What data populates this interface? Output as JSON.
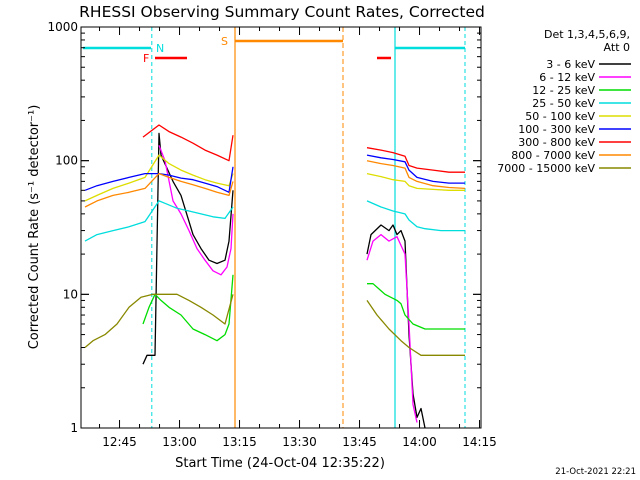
{
  "chart_data": {
    "type": "line",
    "title": "RHESSI Observing Summary Count Rates, Corrected",
    "xlabel": "Start Time (24-Oct-04 12:35:22)",
    "ylabel": "Corrected Count Rate (s⁻¹ detector⁻¹)",
    "y_scale": "log",
    "ylim": [
      1,
      1000
    ],
    "xlim_minutes": [
      0,
      100
    ],
    "x_tick_labels": [
      "12:45",
      "13:00",
      "13:15",
      "13:30",
      "13:45",
      "14:00",
      "14:15"
    ],
    "y_tick_labels": [
      "1",
      "10",
      "100",
      "1000"
    ],
    "legend_header": [
      "Det 1,3,4,5,6,9,",
      "Att 0"
    ],
    "timestamp": "21-Oct-2021 22:21",
    "markers": {
      "F": "F",
      "N": "N",
      "S": "S"
    },
    "series": [
      {
        "name": "3 - 6 keV",
        "color": "#000000",
        "points": [
          [
            15.5,
            3.0
          ],
          [
            16.5,
            3.5
          ],
          [
            18.5,
            3.5
          ],
          [
            19.5,
            160
          ],
          [
            20,
            110
          ],
          [
            23,
            70
          ],
          [
            25,
            55
          ],
          [
            28,
            28
          ],
          [
            30,
            22
          ],
          [
            32,
            18
          ],
          [
            34,
            17
          ],
          [
            36,
            18
          ],
          [
            37,
            25
          ],
          [
            38,
            60
          ],
          [
            null,
            null
          ],
          [
            71.5,
            20
          ],
          [
            72.5,
            28
          ],
          [
            75,
            33
          ],
          [
            77,
            30
          ],
          [
            78,
            33
          ],
          [
            79,
            28
          ],
          [
            80,
            30
          ],
          [
            81,
            25
          ],
          [
            82,
            5
          ],
          [
            83,
            1.8
          ],
          [
            84,
            1.2
          ],
          [
            85,
            1.4
          ],
          [
            86,
            1.0
          ]
        ]
      },
      {
        "name": "6 - 12 keV",
        "color": "#ff00ff",
        "points": [
          [
            19.5,
            130
          ],
          [
            21,
            100
          ],
          [
            23,
            50
          ],
          [
            25,
            40
          ],
          [
            27,
            30
          ],
          [
            29,
            22
          ],
          [
            31,
            18
          ],
          [
            33,
            15
          ],
          [
            35,
            14
          ],
          [
            36.5,
            16
          ],
          [
            37.5,
            22
          ],
          [
            38,
            40
          ],
          [
            null,
            null
          ],
          [
            71.5,
            18
          ],
          [
            73,
            25
          ],
          [
            75,
            28
          ],
          [
            77,
            25
          ],
          [
            79,
            27
          ],
          [
            81,
            20
          ],
          [
            82,
            6
          ],
          [
            83,
            1.5
          ],
          [
            84,
            1.1
          ]
        ]
      },
      {
        "name": "12 - 25 keV",
        "color": "#00dd00",
        "points": [
          [
            15.5,
            6
          ],
          [
            17,
            8
          ],
          [
            18.5,
            10
          ],
          [
            20,
            9
          ],
          [
            22,
            8
          ],
          [
            25,
            7
          ],
          [
            28,
            5.5
          ],
          [
            31,
            5
          ],
          [
            34,
            4.5
          ],
          [
            36,
            5
          ],
          [
            37,
            6
          ],
          [
            38,
            14
          ],
          [
            null,
            null
          ],
          [
            71.5,
            12
          ],
          [
            73,
            12
          ],
          [
            76,
            10
          ],
          [
            79,
            9
          ],
          [
            80,
            8.5
          ],
          [
            81,
            7
          ],
          [
            83,
            6
          ],
          [
            86,
            5.5
          ],
          [
            90,
            5.5
          ],
          [
            96,
            5.5
          ]
        ]
      },
      {
        "name": "25 - 50 keV",
        "color": "#00dddd",
        "points": [
          [
            1,
            25
          ],
          [
            4,
            28
          ],
          [
            8,
            30
          ],
          [
            12,
            32
          ],
          [
            16,
            35
          ],
          [
            19.5,
            50
          ],
          [
            21,
            48
          ],
          [
            24,
            44
          ],
          [
            27,
            42
          ],
          [
            30,
            40
          ],
          [
            33,
            38
          ],
          [
            36,
            37
          ],
          [
            38,
            45
          ],
          [
            null,
            null
          ],
          [
            71.5,
            50
          ],
          [
            75,
            45
          ],
          [
            78,
            42
          ],
          [
            81,
            40
          ],
          [
            82,
            36
          ],
          [
            84,
            32
          ],
          [
            86,
            31
          ],
          [
            90,
            30
          ],
          [
            96,
            30
          ]
        ]
      },
      {
        "name": "50 - 100 keV",
        "color": "#dddd00",
        "points": [
          [
            1,
            50
          ],
          [
            4,
            55
          ],
          [
            8,
            62
          ],
          [
            12,
            68
          ],
          [
            16,
            75
          ],
          [
            19.5,
            110
          ],
          [
            22,
            95
          ],
          [
            25,
            85
          ],
          [
            28,
            78
          ],
          [
            31,
            72
          ],
          [
            34,
            68
          ],
          [
            37,
            65
          ],
          [
            38,
            80
          ],
          [
            null,
            null
          ],
          [
            71.5,
            80
          ],
          [
            75,
            76
          ],
          [
            78,
            72
          ],
          [
            81,
            70
          ],
          [
            82,
            65
          ],
          [
            84,
            62
          ],
          [
            88,
            61
          ],
          [
            92,
            60
          ],
          [
            96,
            60
          ]
        ]
      },
      {
        "name": "100 - 300 keV",
        "color": "#0000ff",
        "points": [
          [
            1,
            60
          ],
          [
            4,
            65
          ],
          [
            8,
            70
          ],
          [
            12,
            75
          ],
          [
            16,
            80
          ],
          [
            19.5,
            80
          ],
          [
            22,
            78
          ],
          [
            25,
            74
          ],
          [
            28,
            72
          ],
          [
            31,
            68
          ],
          [
            34,
            64
          ],
          [
            37,
            58
          ],
          [
            38,
            90
          ],
          [
            null,
            null
          ],
          [
            71.5,
            110
          ],
          [
            75,
            105
          ],
          [
            78,
            102
          ],
          [
            81,
            98
          ],
          [
            82,
            85
          ],
          [
            84,
            75
          ],
          [
            88,
            70
          ],
          [
            92,
            68
          ],
          [
            96,
            68
          ]
        ]
      },
      {
        "name": "300 - 800 keV",
        "color": "#ff0000",
        "points": [
          [
            15.5,
            150
          ],
          [
            19.5,
            185
          ],
          [
            22,
            165
          ],
          [
            25,
            150
          ],
          [
            28,
            135
          ],
          [
            31,
            120
          ],
          [
            34,
            110
          ],
          [
            37,
            100
          ],
          [
            38,
            155
          ],
          [
            null,
            null
          ],
          [
            71.5,
            125
          ],
          [
            75,
            120
          ],
          [
            78,
            115
          ],
          [
            81,
            108
          ],
          [
            82,
            92
          ],
          [
            84,
            88
          ],
          [
            88,
            85
          ],
          [
            92,
            82
          ],
          [
            96,
            82
          ]
        ]
      },
      {
        "name": "800 - 7000 keV",
        "color": "#ff8800",
        "points": [
          [
            1,
            45
          ],
          [
            4,
            50
          ],
          [
            8,
            55
          ],
          [
            12,
            58
          ],
          [
            16,
            62
          ],
          [
            19.5,
            80
          ],
          [
            22,
            75
          ],
          [
            25,
            70
          ],
          [
            28,
            66
          ],
          [
            31,
            62
          ],
          [
            34,
            58
          ],
          [
            37,
            55
          ],
          [
            38,
            70
          ],
          [
            null,
            null
          ],
          [
            71.5,
            100
          ],
          [
            75,
            95
          ],
          [
            78,
            92
          ],
          [
            81,
            88
          ],
          [
            82,
            75
          ],
          [
            84,
            70
          ],
          [
            88,
            65
          ],
          [
            92,
            63
          ],
          [
            96,
            62
          ]
        ]
      },
      {
        "name": "7000 - 15000 keV",
        "color": "#888800",
        "points": [
          [
            1,
            4
          ],
          [
            3,
            4.5
          ],
          [
            6,
            5
          ],
          [
            9,
            6
          ],
          [
            12,
            8
          ],
          [
            15,
            9.5
          ],
          [
            18,
            10
          ],
          [
            21,
            10
          ],
          [
            24,
            10
          ],
          [
            27,
            9
          ],
          [
            30,
            8
          ],
          [
            33,
            7
          ],
          [
            36,
            6
          ],
          [
            38,
            10
          ],
          [
            null,
            null
          ],
          [
            71.5,
            9
          ],
          [
            74,
            7
          ],
          [
            77,
            5.5
          ],
          [
            80,
            4.5
          ],
          [
            82,
            4
          ],
          [
            85,
            3.5
          ],
          [
            90,
            3.5
          ],
          [
            96,
            3.5
          ]
        ]
      }
    ]
  }
}
